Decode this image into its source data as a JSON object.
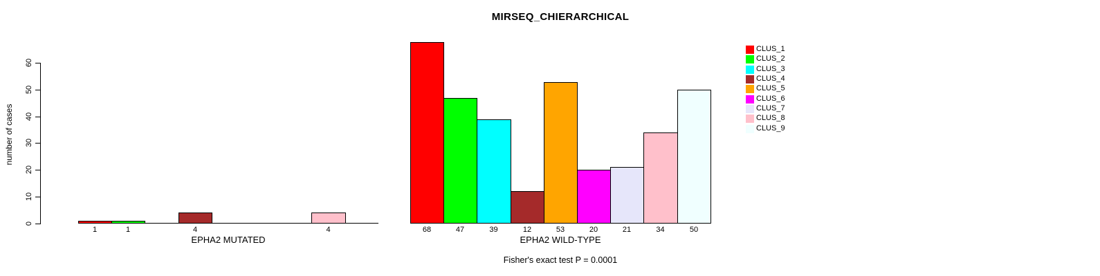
{
  "title": "MIRSEQ_CHIERARCHICAL",
  "annotation": "Fisher's exact test P = 0.0001",
  "chart_data": {
    "type": "bar",
    "title": "MIRSEQ_CHIERARCHICAL",
    "ylabel": "number of cases",
    "y_ticks": [
      0,
      10,
      20,
      30,
      40,
      50,
      60
    ],
    "ylim": [
      0,
      68
    ],
    "grid": false,
    "legend_position": "right",
    "annotation": "Fisher's exact test P = 0.0001",
    "series_labels": [
      "CLUS_1",
      "CLUS_2",
      "CLUS_3",
      "CLUS_4",
      "CLUS_5",
      "CLUS_6",
      "CLUS_7",
      "CLUS_8",
      "CLUS_9"
    ],
    "colors": [
      "#FF0000",
      "#00FF00",
      "#00FFFF",
      "#A52A2A",
      "#FFA500",
      "#FF00FF",
      "#E6E6FA",
      "#FFC0CB",
      "#F0FFFF"
    ],
    "bar_border_color": "#000000",
    "panels": [
      {
        "xlabel": "EPHA2 MUTATED",
        "values": [
          1,
          1,
          0,
          4,
          0,
          0,
          0,
          4,
          0
        ],
        "bar_labels": [
          "1",
          "1",
          "",
          "4",
          "",
          "",
          "",
          "4",
          ""
        ]
      },
      {
        "xlabel": "EPHA2 WILD-TYPE",
        "values": [
          68,
          47,
          39,
          12,
          53,
          20,
          21,
          34,
          50
        ],
        "bar_labels": [
          "68",
          "47",
          "39",
          "12",
          "53",
          "20",
          "21",
          "34",
          "50"
        ]
      }
    ]
  }
}
